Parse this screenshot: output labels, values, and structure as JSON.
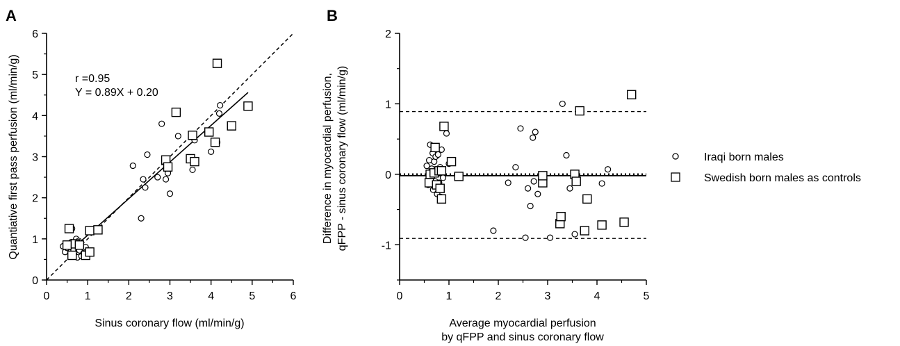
{
  "chart_data": [
    {
      "panel": "A",
      "type": "scatter",
      "xlabel": "Sinus coronary flow (ml/min/g)",
      "ylabel": "Quantiative first pass perfusion (ml/min/g)",
      "xlim": [
        0,
        6
      ],
      "ylim": [
        0,
        6
      ],
      "x_ticks": [
        "0",
        "1",
        "2",
        "3",
        "4",
        "5",
        "6"
      ],
      "y_ticks": [
        "0",
        "1",
        "2",
        "3",
        "4",
        "5",
        "6"
      ],
      "annotations": [
        "r =0.95",
        "Y = 0.89X + 0.20"
      ],
      "regression": {
        "slope": 0.89,
        "intercept": 0.2,
        "x_range": [
          0.6,
          4.9
        ]
      },
      "identity_line": {
        "x_range": [
          0,
          6
        ]
      },
      "series": [
        {
          "marker": "circle",
          "points": [
            [
              0.4,
              0.82
            ],
            [
              0.45,
              0.68
            ],
            [
              0.5,
              0.78
            ],
            [
              0.55,
              0.85
            ],
            [
              0.6,
              0.92
            ],
            [
              0.62,
              1.25
            ],
            [
              0.65,
              0.75
            ],
            [
              0.68,
              0.6
            ],
            [
              0.7,
              0.88
            ],
            [
              0.72,
              1.0
            ],
            [
              0.75,
              0.55
            ],
            [
              0.78,
              0.95
            ],
            [
              0.8,
              0.72
            ],
            [
              0.85,
              0.58
            ],
            [
              0.9,
              0.65
            ],
            [
              0.95,
              0.8
            ],
            [
              1.05,
              0.7
            ],
            [
              2.1,
              2.78
            ],
            [
              2.3,
              1.5
            ],
            [
              2.35,
              2.45
            ],
            [
              2.4,
              2.25
            ],
            [
              2.45,
              3.05
            ],
            [
              2.7,
              2.5
            ],
            [
              2.8,
              3.8
            ],
            [
              2.9,
              2.45
            ],
            [
              2.95,
              2.6
            ],
            [
              3.0,
              2.1
            ],
            [
              3.2,
              3.5
            ],
            [
              3.55,
              2.68
            ],
            [
              3.6,
              3.4
            ],
            [
              4.0,
              3.12
            ],
            [
              4.15,
              3.35
            ],
            [
              4.2,
              4.05
            ],
            [
              4.22,
              4.25
            ]
          ]
        },
        {
          "marker": "square",
          "points": [
            [
              0.5,
              0.85
            ],
            [
              0.55,
              1.25
            ],
            [
              0.62,
              0.6
            ],
            [
              0.7,
              0.88
            ],
            [
              0.8,
              0.85
            ],
            [
              0.95,
              0.6
            ],
            [
              1.05,
              1.2
            ],
            [
              1.05,
              0.68
            ],
            [
              1.25,
              1.22
            ],
            [
              2.9,
              2.92
            ],
            [
              2.95,
              2.75
            ],
            [
              3.15,
              4.08
            ],
            [
              3.5,
              2.95
            ],
            [
              3.55,
              3.52
            ],
            [
              3.6,
              2.88
            ],
            [
              3.95,
              3.6
            ],
            [
              4.1,
              3.35
            ],
            [
              4.15,
              5.27
            ],
            [
              4.5,
              3.75
            ],
            [
              4.9,
              4.23
            ]
          ]
        }
      ]
    },
    {
      "panel": "B",
      "type": "scatter",
      "xlabel": "Average myocardial perfusion",
      "xlabel2": "by qFPP and sinus coronary flow",
      "ylabel": "Difference in myocardial perfusion,",
      "ylabel2": "qFPP - sinus coronary flow (ml/min/g)",
      "xlim": [
        0,
        5
      ],
      "ylim": [
        -1.5,
        2
      ],
      "x_ticks": [
        "0",
        "1",
        "2",
        "3",
        "4",
        "5"
      ],
      "y_ticks": [
        "-1",
        "0",
        "1",
        "2"
      ],
      "reference_lines": {
        "upper_loa": 0.89,
        "lower_loa": -0.91,
        "mean": 0.0,
        "zero": -0.02
      },
      "series": [
        {
          "name": "Iraqi born males",
          "marker": "circle",
          "points": [
            [
              0.55,
              0.12
            ],
            [
              0.58,
              -0.15
            ],
            [
              0.6,
              0.2
            ],
            [
              0.62,
              0.42
            ],
            [
              0.63,
              -0.05
            ],
            [
              0.65,
              0.08
            ],
            [
              0.67,
              0.3
            ],
            [
              0.68,
              -0.22
            ],
            [
              0.7,
              0.18
            ],
            [
              0.72,
              -0.1
            ],
            [
              0.73,
              0.25
            ],
            [
              0.75,
              0.05
            ],
            [
              0.76,
              -0.28
            ],
            [
              0.78,
              0.28
            ],
            [
              0.8,
              -0.12
            ],
            [
              0.82,
              0.1
            ],
            [
              0.83,
              -0.32
            ],
            [
              0.85,
              0.35
            ],
            [
              0.88,
              -0.05
            ],
            [
              0.95,
              0.58
            ],
            [
              1.0,
              0.15
            ],
            [
              1.9,
              -0.8
            ],
            [
              2.2,
              -0.12
            ],
            [
              2.35,
              0.1
            ],
            [
              2.45,
              0.65
            ],
            [
              2.55,
              -0.9
            ],
            [
              2.6,
              -0.2
            ],
            [
              2.65,
              -0.45
            ],
            [
              2.7,
              0.52
            ],
            [
              2.72,
              -0.1
            ],
            [
              2.75,
              0.6
            ],
            [
              2.8,
              -0.28
            ],
            [
              3.05,
              -0.9
            ],
            [
              3.3,
              1.0
            ],
            [
              3.38,
              0.27
            ],
            [
              3.45,
              -0.2
            ],
            [
              3.55,
              -0.85
            ],
            [
              4.1,
              -0.13
            ],
            [
              4.22,
              0.07
            ]
          ]
        },
        {
          "name": "Swedish born males as controls",
          "marker": "square",
          "points": [
            [
              0.6,
              -0.12
            ],
            [
              0.62,
              0.0
            ],
            [
              0.7,
              0.02
            ],
            [
              0.72,
              0.38
            ],
            [
              0.75,
              -0.15
            ],
            [
              0.8,
              0.05
            ],
            [
              0.82,
              -0.2
            ],
            [
              0.85,
              0.05
            ],
            [
              0.85,
              -0.35
            ],
            [
              0.9,
              0.68
            ],
            [
              1.05,
              0.18
            ],
            [
              1.2,
              -0.03
            ],
            [
              2.9,
              -0.12
            ],
            [
              2.9,
              -0.02
            ],
            [
              3.25,
              -0.7
            ],
            [
              3.27,
              -0.6
            ],
            [
              3.55,
              0.0
            ],
            [
              3.58,
              -0.1
            ],
            [
              3.65,
              0.9
            ],
            [
              3.75,
              -0.8
            ],
            [
              3.8,
              -0.35
            ],
            [
              4.1,
              -0.72
            ],
            [
              4.55,
              -0.68
            ],
            [
              4.7,
              1.13
            ]
          ]
        }
      ]
    }
  ]
}
